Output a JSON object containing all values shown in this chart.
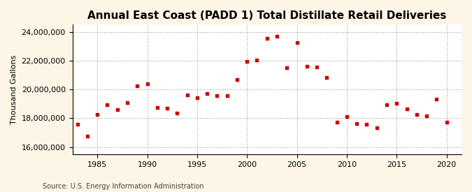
{
  "title": "Annual East Coast (PADD 1) Total Distillate Retail Deliveries",
  "ylabel": "Thousand Gallons",
  "source": "Source: U.S. Energy Information Administration",
  "background_color": "#fdf5e6",
  "plot_background_color": "#ffffff",
  "marker_color": "#cc0000",
  "years": [
    1983,
    1984,
    1985,
    1986,
    1987,
    1988,
    1989,
    1990,
    1991,
    1992,
    1993,
    1994,
    1995,
    1996,
    1997,
    1998,
    1999,
    2000,
    2001,
    2002,
    2003,
    2004,
    2005,
    2006,
    2007,
    2008,
    2009,
    2010,
    2011,
    2012,
    2013,
    2014,
    2015,
    2016,
    2017,
    2018,
    2019,
    2020
  ],
  "values": [
    17600000,
    16750000,
    18250000,
    18950000,
    18600000,
    19100000,
    20250000,
    20400000,
    18750000,
    18700000,
    18350000,
    19600000,
    19450000,
    19700000,
    19550000,
    19550000,
    20700000,
    21950000,
    22050000,
    23550000,
    23700000,
    21500000,
    23250000,
    21600000,
    21550000,
    20850000,
    17750000,
    18100000,
    17650000,
    17600000,
    17350000,
    18950000,
    19050000,
    18650000,
    18250000,
    18150000,
    19350000,
    17750000
  ],
  "ylim": [
    15500000,
    24500000
  ],
  "yticks": [
    16000000,
    18000000,
    20000000,
    22000000,
    24000000
  ],
  "xticks": [
    1985,
    1990,
    1995,
    2000,
    2005,
    2010,
    2015,
    2020
  ],
  "xlim": [
    1982.5,
    2021.5
  ],
  "grid_color": "#aaaaaa",
  "title_fontsize": 11,
  "axis_fontsize": 8,
  "tick_fontsize": 8,
  "source_fontsize": 7
}
